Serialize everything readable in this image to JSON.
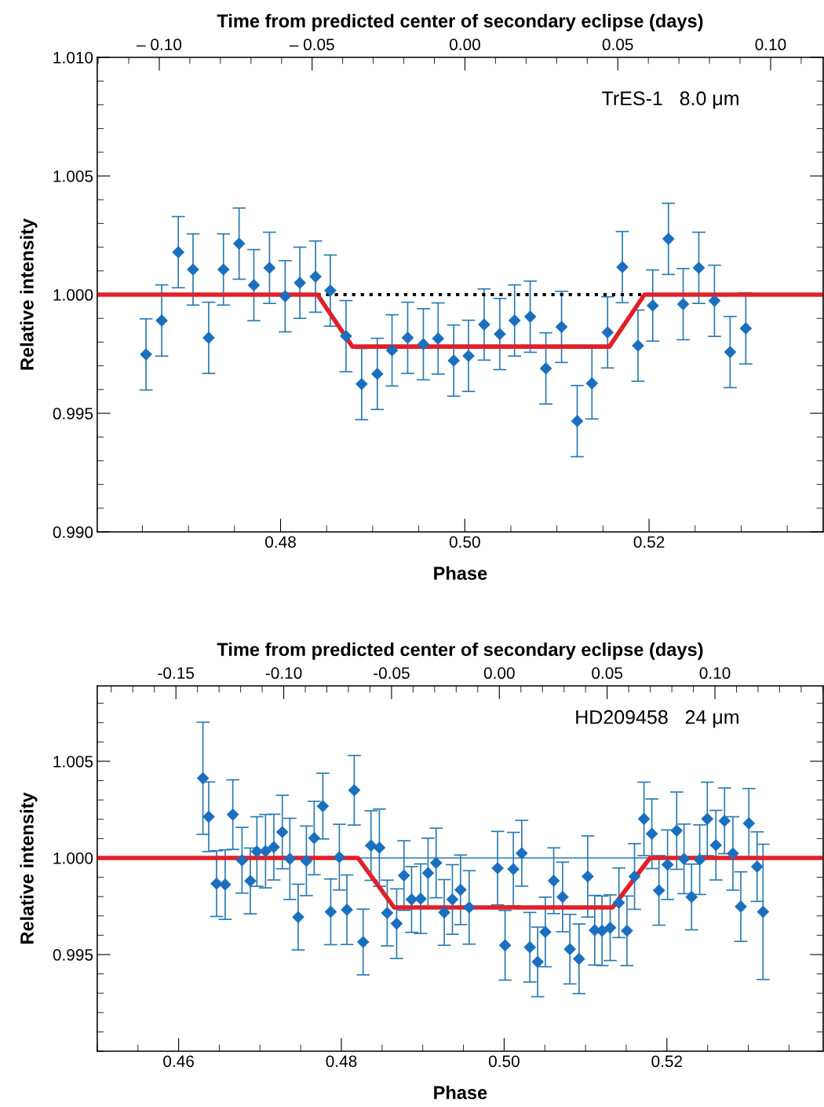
{
  "chart_data": [
    {
      "type": "scatter",
      "x2label": "Time from predicted center of secondary eclipse (days)",
      "xlabel": "Phase",
      "ylabel": "Relative intensity",
      "xlim": [
        0.4601,
        0.5389
      ],
      "xticks": [
        {
          "value": 0.48,
          "label": "0.48"
        },
        {
          "value": 0.5,
          "label": "0.50"
        },
        {
          "value": 0.52,
          "label": "0.52"
        }
      ],
      "x2lim": [
        -0.1203,
        0.1172
      ],
      "x2ticks": [
        {
          "value": -0.1,
          "label": "– 0.10"
        },
        {
          "value": -0.05,
          "label": "– 0.05"
        },
        {
          "value": 0.0,
          "label": "0.00"
        },
        {
          "value": 0.05,
          "label": "0.05"
        },
        {
          "value": 0.1,
          "label": "0.10"
        }
      ],
      "ylim": [
        0.99,
        1.01
      ],
      "yticks": [
        {
          "value": 0.99,
          "label": "0.990"
        },
        {
          "value": 0.995,
          "label": "0.995"
        },
        {
          "value": 1.0,
          "label": "1.000"
        },
        {
          "value": 1.005,
          "label": "1.005"
        },
        {
          "value": 1.01,
          "label": "1.010"
        }
      ],
      "grid": false,
      "annotations": [
        "TrES-1   8.0 μm"
      ],
      "series": [
        {
          "color": "#1b6fbf",
          "marker": "diamond",
          "x": [
            0.4654,
            0.4671,
            0.4689,
            0.4705,
            0.4722,
            0.4738,
            0.4755,
            0.4771,
            0.4788,
            0.4805,
            0.4821,
            0.4838,
            0.4854,
            0.4871,
            0.4888,
            0.4905,
            0.4921,
            0.4938,
            0.4955,
            0.4971,
            0.4988,
            0.5004,
            0.5021,
            0.5038,
            0.5054,
            0.5071,
            0.5088,
            0.5105,
            0.5122,
            0.5138,
            0.5155,
            0.5171,
            0.5188,
            0.5204,
            0.5221,
            0.5237,
            0.5254,
            0.5271,
            0.5288,
            0.5305
          ],
          "values": [
            0.99748,
            0.99891,
            1.00179,
            1.00106,
            0.99818,
            1.00106,
            1.00215,
            1.0004,
            1.00113,
            0.99993,
            1.0005,
            1.00076,
            1.00017,
            0.99825,
            0.99623,
            0.99666,
            0.99765,
            0.99818,
            0.99791,
            0.99815,
            0.99722,
            0.99742,
            0.99874,
            0.99834,
            0.99891,
            0.99907,
            0.99689,
            0.99864,
            0.99467,
            0.99626,
            0.99841,
            1.00116,
            0.99785,
            0.99954,
            1.00235,
            0.9996,
            1.00113,
            0.99974,
            0.99758,
            0.99858
          ],
          "errors": [
            0.0015,
            0.0015,
            0.0015,
            0.0015,
            0.0015,
            0.0015,
            0.0015,
            0.0015,
            0.0015,
            0.0015,
            0.0015,
            0.0015,
            0.0015,
            0.0015,
            0.0015,
            0.0015,
            0.0015,
            0.0015,
            0.0015,
            0.0015,
            0.0015,
            0.0015,
            0.0015,
            0.0015,
            0.0015,
            0.0015,
            0.0015,
            0.0015,
            0.0015,
            0.0015,
            0.0015,
            0.0015,
            0.0015,
            0.0015,
            0.0015,
            0.0015,
            0.0015,
            0.0015,
            0.0015,
            0.0015
          ]
        },
        {
          "type": "line",
          "color": "#000000",
          "line_style": "dotted",
          "x": [
            0.484,
            0.5194
          ],
          "values": [
            1.0,
            1.0
          ]
        },
        {
          "type": "line",
          "color": "#e0202a",
          "line_style": "solid",
          "x": [
            0.4601,
            0.484,
            0.4878,
            0.5157,
            0.5195,
            0.5389
          ],
          "values": [
            1.0,
            1.0,
            0.99781,
            0.99781,
            1.0,
            1.0
          ]
        }
      ]
    },
    {
      "type": "scatter",
      "x2label": "Time from predicted center of secondary eclipse (days)",
      "xlabel": "Phase",
      "ylabel": "Relative intensity",
      "xlim": [
        0.45,
        0.5392
      ],
      "xticks": [
        {
          "value": 0.46,
          "label": "0.46"
        },
        {
          "value": 0.48,
          "label": "0.48"
        },
        {
          "value": 0.5,
          "label": "0.50"
        },
        {
          "value": 0.52,
          "label": "0.52"
        }
      ],
      "x2lim": [
        -0.1865,
        0.1502
      ],
      "x2ticks": [
        {
          "value": -0.15,
          "label": "-0.15"
        },
        {
          "value": -0.1,
          "label": "-0.10"
        },
        {
          "value": -0.05,
          "label": "-0.05"
        },
        {
          "value": 0.0,
          "label": "0.00"
        },
        {
          "value": 0.05,
          "label": "0.05"
        },
        {
          "value": 0.1,
          "label": "0.10"
        }
      ],
      "ylim": [
        0.99,
        1.0089
      ],
      "yticks": [
        {
          "value": 0.995,
          "label": "0.995"
        },
        {
          "value": 1.0,
          "label": "1.000"
        },
        {
          "value": 1.005,
          "label": "1.005"
        }
      ],
      "grid": false,
      "annotations": [
        "HD209458   24 μm"
      ],
      "ref_lines": [
        {
          "axis": "y",
          "value": 1.0,
          "color": "#2a7ab0"
        }
      ],
      "series": [
        {
          "color": "#1b6fbf",
          "marker": "diamond",
          "x": [
            0.46299,
            0.4637,
            0.46466,
            0.46572,
            0.46666,
            0.46779,
            0.46881,
            0.46962,
            0.47068,
            0.4717,
            0.47274,
            0.47367,
            0.47469,
            0.4757,
            0.47666,
            0.47772,
            0.47869,
            0.47975,
            0.48068,
            0.48158,
            0.48267,
            0.48364,
            0.48467,
            0.48563,
            0.48679,
            0.48769,
            0.48863,
            0.48974,
            0.49065,
            0.49164,
            0.49264,
            0.49364,
            0.49464,
            0.4957,
            0.4992,
            0.50011,
            0.50113,
            0.50216,
            0.50316,
            0.50412,
            0.50506,
            0.50609,
            0.50718,
            0.50808,
            0.5092,
            0.51027,
            0.51113,
            0.51203,
            0.51303,
            0.5141,
            0.51509,
            0.51602,
            0.51718,
            0.51815,
            0.51902,
            0.52008,
            0.5212,
            0.5221,
            0.52303,
            0.52403,
            0.52496,
            0.52602,
            0.52708,
            0.52811,
            0.52908,
            0.53007,
            0.53108,
            0.53181
          ],
          "values": [
            1.00412,
            1.00213,
            0.99867,
            0.99862,
            1.00224,
            0.99988,
            0.99881,
            1.00033,
            1.00035,
            1.00056,
            1.00134,
            0.99995,
            0.99694,
            0.99985,
            1.00103,
            1.00268,
            0.99721,
            1.00004,
            0.99732,
            1.0035,
            0.99565,
            1.00064,
            1.00053,
            0.99715,
            0.9966,
            0.99909,
            0.99785,
            0.99789,
            0.99922,
            0.99974,
            0.99718,
            0.99785,
            0.99835,
            0.99744,
            0.99947,
            0.99548,
            0.99942,
            1.00024,
            0.99538,
            0.99462,
            0.99617,
            0.99882,
            0.99798,
            0.99528,
            0.99478,
            0.99904,
            0.99626,
            0.99623,
            0.99639,
            0.99768,
            0.99623,
            0.99904,
            1.00202,
            1.00125,
            0.99832,
            0.99965,
            1.00141,
            0.99995,
            0.99798,
            0.99991,
            1.00202,
            1.00066,
            1.00192,
            1.00023,
            0.99748,
            1.00179,
            0.99955,
            0.99721
          ],
          "errors": [
            0.0029,
            0.0018,
            0.0017,
            0.0018,
            0.0018,
            0.0017,
            0.0017,
            0.0018,
            0.0019,
            0.0017,
            0.0019,
            0.0021,
            0.0017,
            0.0018,
            0.0019,
            0.0017,
            0.0017,
            0.0017,
            0.0018,
            0.0018,
            0.0017,
            0.0018,
            0.002,
            0.0017,
            0.0018,
            0.0018,
            0.0017,
            0.0018,
            0.0018,
            0.0018,
            0.0017,
            0.0018,
            0.0018,
            0.0019,
            0.0019,
            0.0018,
            0.0019,
            0.0017,
            0.0018,
            0.0018,
            0.0018,
            0.0017,
            0.0018,
            0.0018,
            0.0018,
            0.0021,
            0.0018,
            0.0018,
            0.0017,
            0.0018,
            0.0018,
            0.0017,
            0.0019,
            0.0018,
            0.0018,
            0.0018,
            0.002,
            0.0018,
            0.0017,
            0.0018,
            0.0019,
            0.0018,
            0.0017,
            0.0019,
            0.0018,
            0.0018,
            0.0018,
            0.0035
          ]
        },
        {
          "type": "line",
          "color": "#e0202a",
          "line_style": "solid",
          "x": [
            0.45,
            0.48203,
            0.48647,
            0.51332,
            0.51792,
            0.5392
          ],
          "values": [
            1.0,
            1.0,
            0.99744,
            0.99744,
            1.0,
            1.0
          ]
        }
      ]
    }
  ]
}
